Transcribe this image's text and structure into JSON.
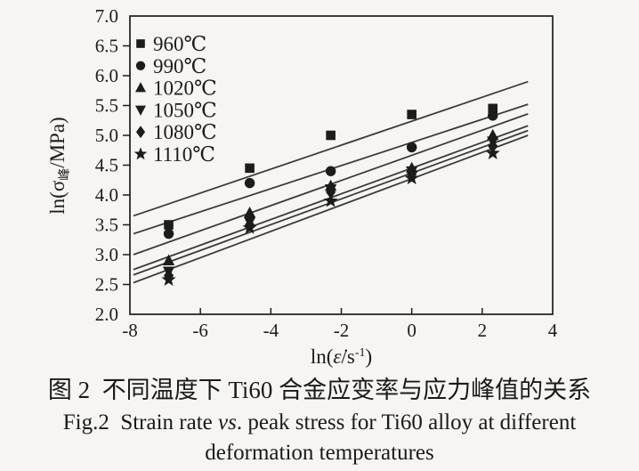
{
  "figure": {
    "caption_cn": "图 2  不同温度下 Ti60 合金应变率与应力峰值的关系",
    "caption_en_prefix": "Fig.2  Strain rate ",
    "caption_en_italic": "vs",
    "caption_en_suffix": ". peak stress for Ti60 alloy at different",
    "caption_en_line2": "deformation temperatures"
  },
  "chart_data": {
    "type": "scatter",
    "title": "",
    "x_axis": {
      "label_parts": {
        "prefix": "ln(",
        "symbol": "ε̇",
        "mid": "/s",
        "sup": "-1",
        "suffix": ")"
      },
      "min": -8,
      "max": 4,
      "ticks": [
        -8,
        -6,
        -4,
        -2,
        0,
        2,
        4
      ],
      "tick_labels": [
        "-8",
        "-6",
        "-4",
        "-2",
        "0",
        "2",
        "4"
      ]
    },
    "y_axis": {
      "label_parts": {
        "prefix": "ln(σ",
        "sub": "峰",
        "suffix": "/MPa)"
      },
      "min": 2.0,
      "max": 7.0,
      "ticks": [
        2.0,
        2.5,
        3.0,
        3.5,
        4.0,
        4.5,
        5.0,
        5.5,
        6.0,
        6.5,
        7.0
      ],
      "tick_labels": [
        "2.0",
        "2.5",
        "3.0",
        "3.5",
        "4.0",
        "4.5",
        "5.0",
        "5.5",
        "6.0",
        "6.5",
        "7.0"
      ]
    },
    "x": [
      -6.9,
      -4.6,
      -2.3,
      0,
      2.3
    ],
    "legend_position": "top-left",
    "grid": false,
    "series": [
      {
        "name": "960℃",
        "marker": "square",
        "values": [
          3.5,
          4.45,
          5.0,
          5.35,
          5.45
        ],
        "fit_line": {
          "x1": -7.9,
          "y1": 3.65,
          "x2": 3.3,
          "y2": 5.9
        }
      },
      {
        "name": "990℃",
        "marker": "circle",
        "values": [
          3.35,
          4.2,
          4.4,
          4.8,
          5.33
        ],
        "fit_line": {
          "x1": -7.9,
          "y1": 3.35,
          "x2": 3.3,
          "y2": 5.52
        }
      },
      {
        "name": "1020℃",
        "marker": "triangle-up",
        "values": [
          2.9,
          3.7,
          4.15,
          4.45,
          5.0
        ],
        "fit_line": {
          "x1": -7.9,
          "y1": 3.0,
          "x2": 3.3,
          "y2": 5.36
        }
      },
      {
        "name": "1050℃",
        "marker": "triangle-down",
        "values": [
          2.72,
          3.55,
          4.1,
          4.4,
          4.9
        ],
        "fit_line": {
          "x1": -7.9,
          "y1": 2.75,
          "x2": 3.3,
          "y2": 5.16
        }
      },
      {
        "name": "1080℃",
        "marker": "diamond",
        "values": [
          2.65,
          3.5,
          4.05,
          4.35,
          4.82
        ],
        "fit_line": {
          "x1": -7.9,
          "y1": 2.66,
          "x2": 3.3,
          "y2": 5.08
        }
      },
      {
        "name": "1110℃",
        "marker": "star",
        "values": [
          2.58,
          3.45,
          3.9,
          4.28,
          4.7
        ],
        "fit_line": {
          "x1": -7.9,
          "y1": 2.53,
          "x2": 3.3,
          "y2": 5.0
        }
      }
    ],
    "colors": {
      "ink": "#1c1c1c",
      "line": "#3c3c3c",
      "paper": "#f6f5f1"
    }
  }
}
